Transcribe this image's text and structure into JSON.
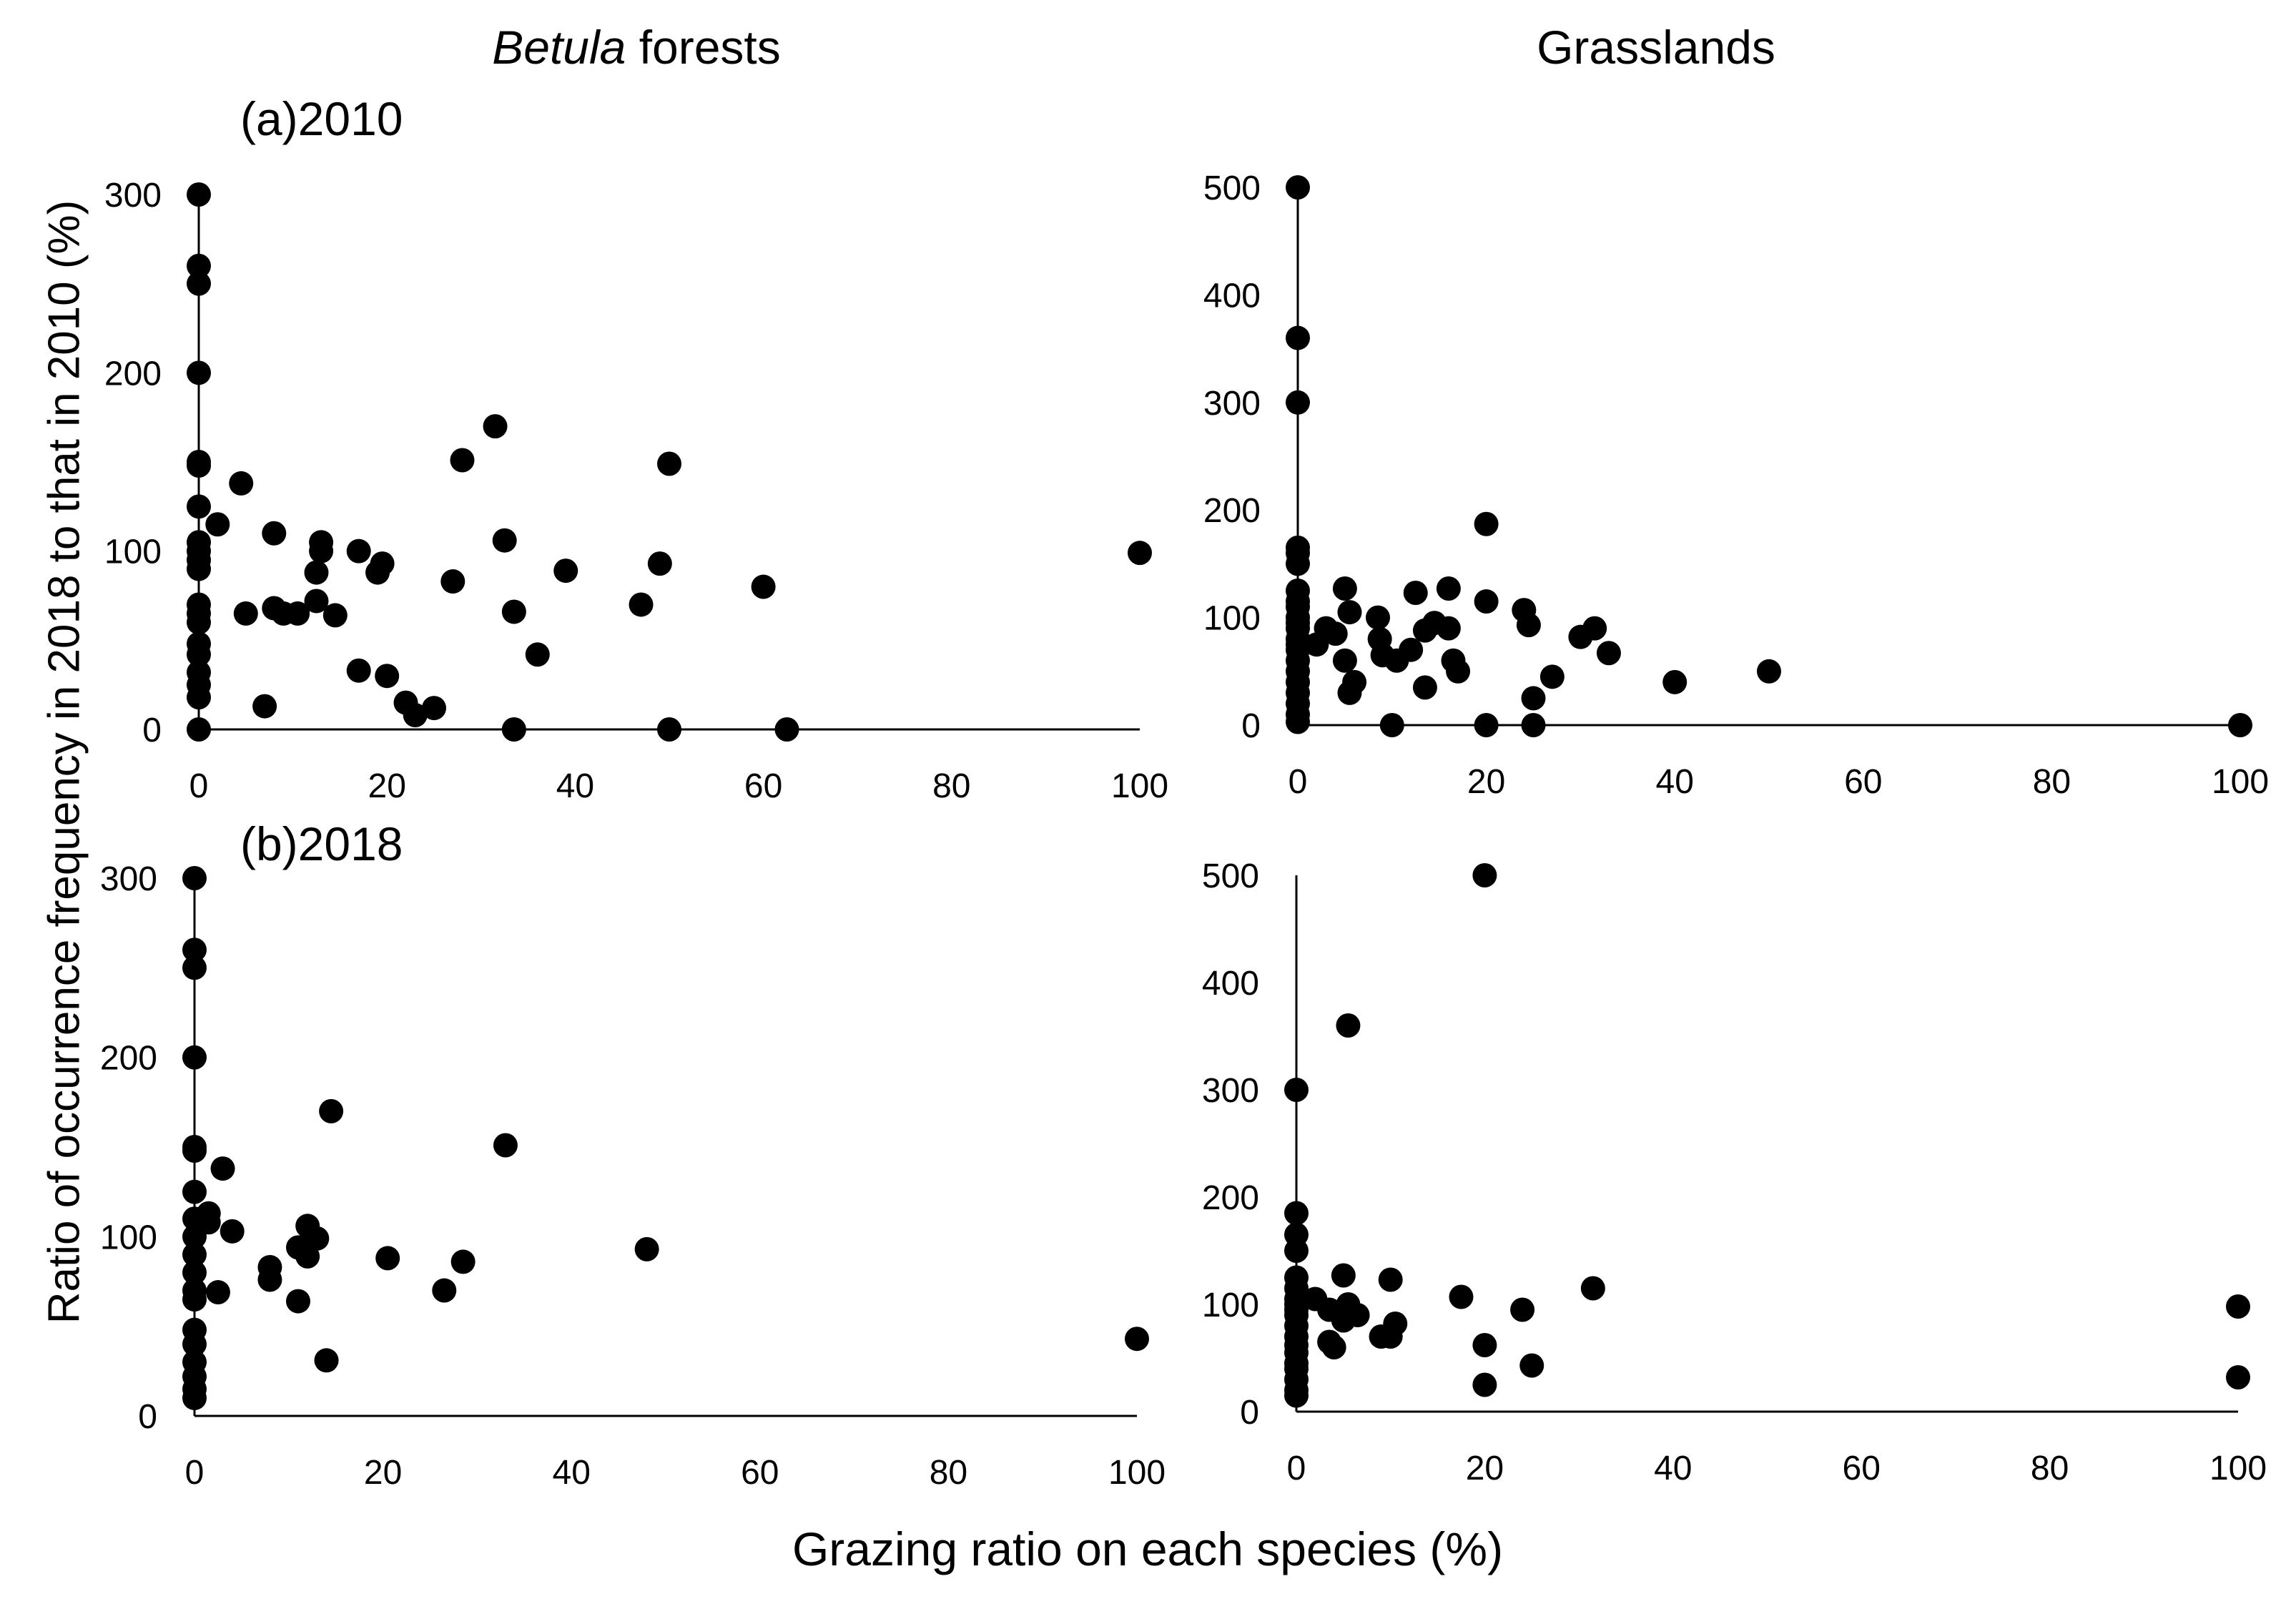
{
  "column_titles": {
    "left_italic": "Betula",
    "left_rest": " forests",
    "right": "Grasslands"
  },
  "panel_labels": {
    "a": "(a)2010",
    "b": "(b)2018"
  },
  "shared_ylabel": "Ratio of occurrence frequency in 2018 to that in 2010 (%)",
  "shared_xlabel": "Grazing ratio on each species (%)",
  "chart_data": [
    {
      "id": "betula-2010",
      "type": "scatter",
      "title": "(a)2010 – Betula forests",
      "xlabel": "Grazing ratio on each species (%)",
      "ylabel": "Ratio of occurrence frequency in 2018 to that in 2010 (%)",
      "xlim": [
        0,
        100
      ],
      "ylim": [
        0,
        300
      ],
      "xticks": [
        0,
        20,
        40,
        60,
        80,
        100
      ],
      "yticks": [
        0,
        100,
        200,
        300
      ],
      "points": [
        [
          0,
          300
        ],
        [
          0,
          260
        ],
        [
          0,
          250
        ],
        [
          0,
          200
        ],
        [
          0,
          150
        ],
        [
          0,
          148
        ],
        [
          0,
          125
        ],
        [
          0,
          105
        ],
        [
          0,
          100
        ],
        [
          0,
          95
        ],
        [
          0,
          90
        ],
        [
          0,
          70
        ],
        [
          0,
          65
        ],
        [
          0,
          60
        ],
        [
          0,
          48
        ],
        [
          0,
          42
        ],
        [
          0,
          32
        ],
        [
          0,
          25
        ],
        [
          0,
          18
        ],
        [
          0,
          0
        ],
        [
          2,
          115
        ],
        [
          4.5,
          138
        ],
        [
          5,
          65
        ],
        [
          7,
          13
        ],
        [
          8,
          110
        ],
        [
          8,
          68
        ],
        [
          9,
          65
        ],
        [
          10.5,
          65
        ],
        [
          12.5,
          88
        ],
        [
          12.5,
          72
        ],
        [
          13,
          100
        ],
        [
          13,
          105
        ],
        [
          14.5,
          64
        ],
        [
          17,
          100
        ],
        [
          17,
          33
        ],
        [
          19,
          88
        ],
        [
          19.5,
          93
        ],
        [
          20,
          30
        ],
        [
          22,
          15
        ],
        [
          23,
          8
        ],
        [
          25,
          12
        ],
        [
          27,
          83
        ],
        [
          28,
          151
        ],
        [
          31.5,
          170
        ],
        [
          32.5,
          106
        ],
        [
          33.5,
          66
        ],
        [
          33.5,
          0
        ],
        [
          36,
          42
        ],
        [
          39,
          89
        ],
        [
          47,
          70
        ],
        [
          49,
          93
        ],
        [
          50,
          149
        ],
        [
          50,
          0
        ],
        [
          60,
          80
        ],
        [
          62.5,
          0
        ],
        [
          100,
          99
        ]
      ]
    },
    {
      "id": "grasslands-2010",
      "type": "scatter",
      "title": "(a)2010 – Grasslands",
      "xlabel": "Grazing ratio on each species (%)",
      "ylabel": "Ratio of occurrence frequency in 2018 to that in 2010 (%)",
      "xlim": [
        0,
        100
      ],
      "ylim": [
        0,
        500
      ],
      "xticks": [
        0,
        20,
        40,
        60,
        80,
        100
      ],
      "yticks": [
        0,
        100,
        200,
        300,
        400,
        500
      ],
      "points": [
        [
          0,
          500
        ],
        [
          0,
          360
        ],
        [
          0,
          300
        ],
        [
          0,
          165
        ],
        [
          0,
          160
        ],
        [
          0,
          150
        ],
        [
          0,
          125
        ],
        [
          0,
          115
        ],
        [
          0,
          110
        ],
        [
          0,
          100
        ],
        [
          0,
          95
        ],
        [
          0,
          90
        ],
        [
          0,
          80
        ],
        [
          0,
          75
        ],
        [
          0,
          70
        ],
        [
          0,
          60
        ],
        [
          0,
          50
        ],
        [
          0,
          40
        ],
        [
          0,
          30
        ],
        [
          0,
          20
        ],
        [
          0,
          10
        ],
        [
          0,
          3
        ],
        [
          2,
          75
        ],
        [
          3,
          90
        ],
        [
          4,
          85
        ],
        [
          5,
          127
        ],
        [
          5,
          60
        ],
        [
          5.5,
          30
        ],
        [
          5.5,
          105
        ],
        [
          6,
          40
        ],
        [
          8.5,
          100
        ],
        [
          8.7,
          80
        ],
        [
          9,
          65
        ],
        [
          10,
          0
        ],
        [
          10.5,
          60
        ],
        [
          12,
          70
        ],
        [
          12.5,
          123
        ],
        [
          13.5,
          88
        ],
        [
          13.5,
          35
        ],
        [
          14.5,
          95
        ],
        [
          16,
          127
        ],
        [
          16,
          90
        ],
        [
          16.5,
          60
        ],
        [
          17,
          50
        ],
        [
          20,
          115
        ],
        [
          20,
          187
        ],
        [
          20,
          0
        ],
        [
          24,
          107
        ],
        [
          24.5,
          93
        ],
        [
          25,
          25
        ],
        [
          25,
          0
        ],
        [
          27,
          45
        ],
        [
          30,
          82
        ],
        [
          31.5,
          90
        ],
        [
          33,
          67
        ],
        [
          40,
          40
        ],
        [
          50,
          50
        ],
        [
          100,
          0
        ]
      ]
    },
    {
      "id": "betula-2018",
      "type": "scatter",
      "title": "(b)2018 – Betula forests",
      "xlabel": "Grazing ratio on each species (%)",
      "ylabel": "Ratio of occurrence frequency in 2018 to that in 2010 (%)",
      "xlim": [
        0,
        100
      ],
      "ylim": [
        0,
        300
      ],
      "xticks": [
        0,
        20,
        40,
        60,
        80,
        100
      ],
      "yticks": [
        0,
        100,
        200,
        300
      ],
      "points": [
        [
          0,
          300
        ],
        [
          0,
          260
        ],
        [
          0,
          250
        ],
        [
          0,
          200
        ],
        [
          0,
          150
        ],
        [
          0,
          148
        ],
        [
          0,
          125
        ],
        [
          0,
          110
        ],
        [
          0,
          100
        ],
        [
          0,
          90
        ],
        [
          0,
          80
        ],
        [
          0,
          70
        ],
        [
          0,
          65
        ],
        [
          0,
          48
        ],
        [
          0,
          40
        ],
        [
          0,
          30
        ],
        [
          0,
          22
        ],
        [
          0,
          15
        ],
        [
          0,
          10
        ],
        [
          1.5,
          108
        ],
        [
          1.5,
          113
        ],
        [
          2.5,
          69
        ],
        [
          3,
          138
        ],
        [
          4,
          103
        ],
        [
          8,
          83
        ],
        [
          8,
          76
        ],
        [
          11,
          64
        ],
        [
          11,
          94
        ],
        [
          12,
          89
        ],
        [
          12,
          106
        ],
        [
          13,
          99
        ],
        [
          14,
          31
        ],
        [
          14.5,
          170
        ],
        [
          20.5,
          88
        ],
        [
          26.5,
          70
        ],
        [
          28.5,
          86
        ],
        [
          33,
          151
        ],
        [
          48,
          93
        ],
        [
          100,
          43
        ]
      ]
    },
    {
      "id": "grasslands-2018",
      "type": "scatter",
      "title": "(b)2018 – Grasslands",
      "xlabel": "Grazing ratio on each species (%)",
      "ylabel": "Ratio of occurrence frequency in 2018 to that in 2010 (%)",
      "xlim": [
        0,
        100
      ],
      "ylim": [
        0,
        500
      ],
      "xticks": [
        0,
        20,
        40,
        60,
        80,
        100
      ],
      "yticks": [
        0,
        100,
        200,
        300,
        400,
        500
      ],
      "points": [
        [
          0,
          300
        ],
        [
          0,
          185
        ],
        [
          0,
          165
        ],
        [
          0,
          150
        ],
        [
          0,
          125
        ],
        [
          0,
          115
        ],
        [
          0,
          105
        ],
        [
          0,
          100
        ],
        [
          0,
          95
        ],
        [
          0,
          90
        ],
        [
          0,
          80
        ],
        [
          0,
          70
        ],
        [
          0,
          62
        ],
        [
          0,
          55
        ],
        [
          0,
          45
        ],
        [
          0,
          40
        ],
        [
          0,
          30
        ],
        [
          0,
          20
        ],
        [
          0,
          15
        ],
        [
          2,
          105
        ],
        [
          3.5,
          95
        ],
        [
          3.5,
          65
        ],
        [
          4,
          60
        ],
        [
          5,
          127
        ],
        [
          5,
          85
        ],
        [
          5.5,
          100
        ],
        [
          5.5,
          360
        ],
        [
          6.5,
          90
        ],
        [
          9,
          70
        ],
        [
          10,
          123
        ],
        [
          10,
          70
        ],
        [
          10.5,
          82
        ],
        [
          17.5,
          107
        ],
        [
          20,
          500
        ],
        [
          20,
          62
        ],
        [
          20,
          25
        ],
        [
          24,
          95
        ],
        [
          25,
          43
        ],
        [
          31.5,
          115
        ],
        [
          100,
          98
        ],
        [
          100,
          32
        ]
      ]
    }
  ]
}
